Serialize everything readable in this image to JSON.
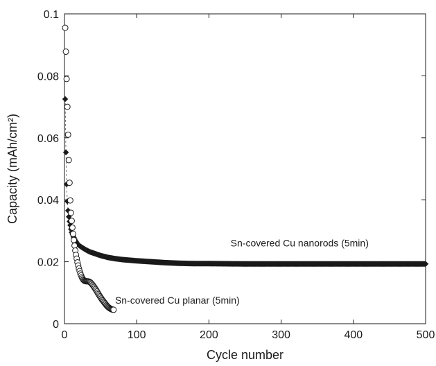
{
  "chart_data": {
    "type": "scatter",
    "title": "",
    "xlabel": "Cycle number",
    "ylabel": "Capacity (mAh/cm²)",
    "xlim": [
      0,
      500
    ],
    "ylim": [
      0,
      0.1
    ],
    "x_ticks": [
      0,
      100,
      200,
      300,
      400,
      500
    ],
    "x_tick_labels": [
      "0",
      "100",
      "200",
      "300",
      "400",
      "500"
    ],
    "y_ticks": [
      0,
      0.02,
      0.04,
      0.06,
      0.08,
      0.1
    ],
    "y_tick_labels": [
      "0",
      "0.02",
      "0.04",
      "0.06",
      "0.08",
      "0.1"
    ],
    "grid": false,
    "legend": "none",
    "annotations": [
      {
        "text": "Sn-covered Cu nanorods (5min)",
        "x": 230,
        "y": 0.025
      },
      {
        "text": "Sn-covered Cu planar (5min)",
        "x": 70,
        "y": 0.0065
      }
    ],
    "series": [
      {
        "marker": "filled-diamond",
        "color": "#1a1a1a",
        "x": [
          1,
          2,
          3,
          4,
          5,
          6,
          7,
          8,
          9,
          10,
          12,
          14,
          16,
          18,
          20,
          25,
          30,
          35,
          40,
          45,
          50,
          60,
          70,
          80,
          90,
          100,
          120,
          140,
          160,
          180,
          200,
          250,
          300,
          350,
          400,
          450,
          500
        ],
        "y": [
          0.0725,
          0.0553,
          0.045,
          0.0395,
          0.0365,
          0.0345,
          0.033,
          0.0318,
          0.0305,
          0.0295,
          0.0283,
          0.0273,
          0.0265,
          0.0258,
          0.0253,
          0.0245,
          0.0238,
          0.0232,
          0.0228,
          0.0224,
          0.022,
          0.0214,
          0.021,
          0.0207,
          0.0205,
          0.0203,
          0.02,
          0.0197,
          0.0195,
          0.0194,
          0.0194,
          0.0193,
          0.0193,
          0.0193,
          0.0193,
          0.0193,
          0.0193
        ]
      },
      {
        "marker": "open-circle",
        "color": "#1a1a1a",
        "x": [
          1,
          2,
          3,
          4,
          5,
          6,
          7,
          8,
          9,
          10,
          11,
          12,
          13,
          14,
          15,
          16,
          17,
          18,
          19,
          20,
          22,
          24,
          26,
          28,
          30,
          32,
          34,
          36,
          38,
          40,
          42,
          44,
          46,
          48,
          50,
          52,
          54,
          56,
          58,
          60,
          62,
          64,
          66,
          68
        ],
        "y": [
          0.0955,
          0.0878,
          0.079,
          0.07,
          0.061,
          0.0528,
          0.0455,
          0.0398,
          0.0358,
          0.0332,
          0.031,
          0.029,
          0.027,
          0.0252,
          0.0236,
          0.0222,
          0.021,
          0.0198,
          0.0188,
          0.0178,
          0.0162,
          0.015,
          0.0142,
          0.0138,
          0.0137,
          0.0137,
          0.0136,
          0.0133,
          0.0128,
          0.0122,
          0.0115,
          0.0108,
          0.01,
          0.0092,
          0.0085,
          0.0078,
          0.0072,
          0.0066,
          0.006,
          0.0055,
          0.0051,
          0.0048,
          0.0046,
          0.0045
        ]
      }
    ]
  }
}
